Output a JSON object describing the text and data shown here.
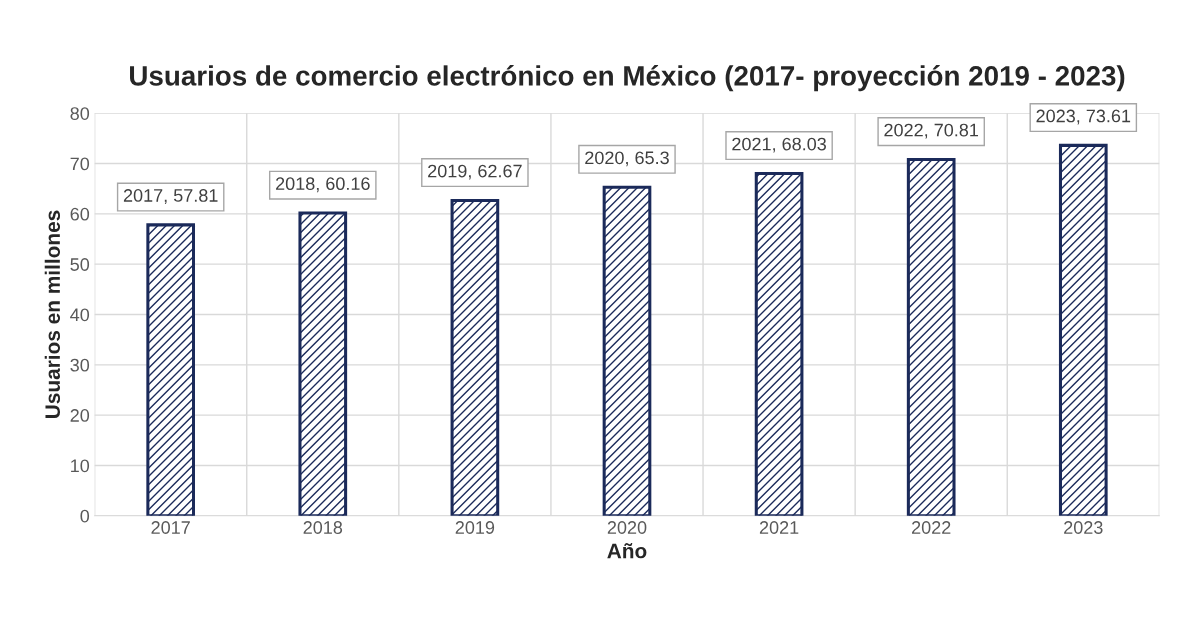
{
  "chart_data": {
    "type": "bar",
    "title": "Usuarios de comercio electrónico en México (2017- proyección 2019 - 2023)",
    "xlabel": "Año",
    "ylabel": "Usuarios en millones",
    "categories": [
      "2017",
      "2018",
      "2019",
      "2020",
      "2021",
      "2022",
      "2023"
    ],
    "values": [
      57.81,
      60.16,
      62.67,
      65.3,
      68.03,
      70.81,
      73.61
    ],
    "value_labels": [
      "2017, 57.81",
      "2018, 60.16",
      "2019, 62.67",
      "2020, 65.3",
      "2021, 68.03",
      "2022, 70.81",
      "2023, 73.61"
    ],
    "color": "#1b2a5a",
    "ylim": [
      0,
      80
    ],
    "yticks": [
      0,
      10,
      20,
      30,
      40,
      50,
      60,
      70,
      80
    ],
    "grid": true
  }
}
